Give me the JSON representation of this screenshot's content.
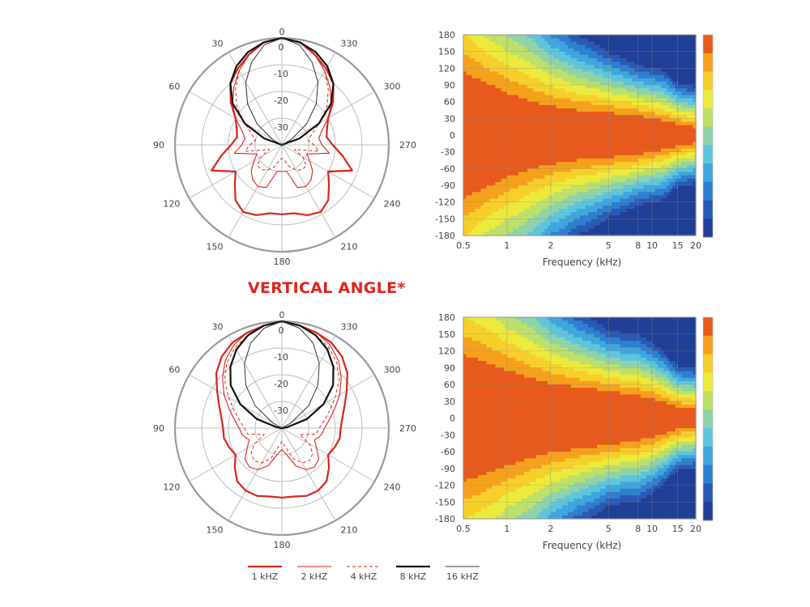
{
  "section_title": "VERTICAL ANGLE*",
  "legend": [
    {
      "label": "1 kHZ",
      "color": "#d8251c",
      "width": 2.2,
      "dash": ""
    },
    {
      "label": "2 kHZ",
      "color": "#d8251c",
      "width": 1.1,
      "dash": ""
    },
    {
      "label": "4 kHZ",
      "color": "#d8251c",
      "width": 1.0,
      "dash": "4,3"
    },
    {
      "label": "8 kHZ",
      "color": "#111111",
      "width": 2.2,
      "dash": ""
    },
    {
      "label": "16 kHZ",
      "color": "#333333",
      "width": 1.0,
      "dash": ""
    }
  ],
  "colors": {
    "grid": "#bdbdbd",
    "outer_ring": "#9a9a9a",
    "text": "#444444",
    "title": "#e0241b",
    "heatmap_bands": [
      "#e85a1c",
      "#f5a11d",
      "#f7cf2a",
      "#ecea3c",
      "#bde06a",
      "#8fd3a8",
      "#5ec5dd",
      "#3fa6de",
      "#2f7fcf",
      "#2a59b4",
      "#203f96"
    ]
  },
  "chart_data": [
    {
      "type": "polar",
      "id": "polar-top",
      "angle_labels": [
        "0",
        "30",
        "60",
        "90",
        "120",
        "150",
        "180",
        "210",
        "240",
        "270",
        "300",
        "330"
      ],
      "radial_labels": [
        "0",
        "-10",
        "-20",
        "-30"
      ],
      "rlim_db": [
        -40,
        0
      ],
      "series": [
        {
          "name": "1 kHZ",
          "db": [
            0,
            -1,
            -4,
            -7,
            -10,
            -15,
            -20,
            -22,
            -23,
            -21,
            -17,
            -12,
            -20,
            -17,
            -13,
            -11,
            -12,
            -14,
            -14,
            -14,
            -12,
            -11,
            -13,
            -17,
            -20,
            -12,
            -17,
            -21,
            -23,
            -22,
            -20,
            -15,
            -10,
            -7,
            -4,
            -1
          ]
        },
        {
          "name": "2 kHZ",
          "db": [
            0,
            -1,
            -4,
            -8,
            -12,
            -16,
            -20,
            -24,
            -26,
            -25,
            -22,
            -30,
            -28,
            -25,
            -23,
            -22,
            -23,
            -30,
            -30,
            -30,
            -23,
            -22,
            -23,
            -25,
            -28,
            -30,
            -22,
            -25,
            -26,
            -24,
            -20,
            -16,
            -12,
            -8,
            -4,
            -1
          ]
        },
        {
          "name": "4 kHZ",
          "db": [
            0,
            -1,
            -4,
            -8,
            -13,
            -18,
            -24,
            -28,
            -30,
            -28,
            -26,
            -35,
            -31,
            -28,
            -28,
            -29,
            -31,
            -34,
            -35,
            -34,
            -31,
            -29,
            -28,
            -28,
            -31,
            -35,
            -26,
            -28,
            -30,
            -28,
            -24,
            -18,
            -13,
            -8,
            -4,
            -1
          ]
        },
        {
          "name": "8 kHZ",
          "db": [
            0,
            -1,
            -3,
            -6,
            -10,
            -16,
            -24,
            -33,
            -40,
            -40,
            -40,
            -40,
            -40,
            -40,
            -40,
            -40,
            -40,
            -40,
            -40,
            -40,
            -40,
            -40,
            -40,
            -40,
            -40,
            -40,
            -40,
            -40,
            -40,
            -33,
            -24,
            -16,
            -10,
            -6,
            -3,
            -1
          ]
        },
        {
          "name": "16 kHZ",
          "db": [
            0,
            -2,
            -7,
            -13,
            -20,
            -28,
            -36,
            -40,
            -40,
            -40,
            -40,
            -40,
            -40,
            -40,
            -40,
            -40,
            -40,
            -40,
            -40,
            -40,
            -40,
            -40,
            -40,
            -40,
            -40,
            -40,
            -40,
            -40,
            -40,
            -40,
            -36,
            -28,
            -20,
            -13,
            -7,
            -2
          ]
        }
      ]
    },
    {
      "type": "heatmap",
      "id": "heatmap-top",
      "xlabel": "Frequency (kHz)",
      "x_scale": "log",
      "xlim": [
        0.5,
        20
      ],
      "x_ticks": [
        0.5,
        1,
        2,
        5,
        8,
        10,
        15,
        20
      ],
      "x_tick_labels": [
        "0.5",
        "1",
        "2",
        "5",
        "8",
        "10",
        "15",
        "20"
      ],
      "ylim": [
        -180,
        180
      ],
      "y_ticks": [
        180,
        150,
        120,
        90,
        60,
        30,
        0,
        -30,
        -60,
        -90,
        -120,
        -150,
        -180
      ],
      "y_tick_labels": [
        "180",
        "150",
        "120",
        "90",
        "60",
        "30",
        "0",
        "-30",
        "-60",
        "-90",
        "-120",
        "-150",
        "-180"
      ],
      "contour_step_db": 3,
      "beamwidth_deg": {
        "freq_khz": [
          0.5,
          0.7,
          1,
          1.5,
          2,
          3,
          5,
          8,
          10,
          12,
          15,
          20
        ],
        "minus3db_deg": [
          112,
          95,
          75,
          60,
          52,
          45,
          40,
          35,
          30,
          26,
          20,
          14
        ],
        "minus6db_deg": [
          148,
          122,
          100,
          82,
          70,
          60,
          52,
          45,
          40,
          36,
          28,
          22
        ]
      }
    },
    {
      "type": "polar",
      "id": "polar-bottom",
      "angle_labels": [
        "0",
        "30",
        "60",
        "90",
        "120",
        "150",
        "180",
        "210",
        "240",
        "270",
        "300",
        "330"
      ],
      "radial_labels": [
        "0",
        "-10",
        "-20",
        "-30"
      ],
      "rlim_db": [
        -40,
        0
      ],
      "series": [
        {
          "name": "1 kHZ",
          "db": [
            0,
            -1,
            -2,
            -3,
            -5,
            -8,
            -12,
            -15,
            -17,
            -18,
            -18,
            -19,
            -20,
            -17,
            -14,
            -13,
            -13,
            -14,
            -14,
            -14,
            -13,
            -13,
            -14,
            -17,
            -20,
            -19,
            -18,
            -18,
            -17,
            -15,
            -12,
            -8,
            -5,
            -3,
            -2,
            -1
          ]
        },
        {
          "name": "2 kHZ",
          "db": [
            0,
            -1,
            -2,
            -4,
            -7,
            -11,
            -15,
            -19,
            -22,
            -24,
            -25,
            -27,
            -25,
            -22,
            -21,
            -22,
            -25,
            -30,
            -32,
            -30,
            -25,
            -22,
            -21,
            -22,
            -25,
            -27,
            -25,
            -24,
            -22,
            -19,
            -15,
            -11,
            -7,
            -4,
            -2,
            -1
          ]
        },
        {
          "name": "4 kHZ",
          "db": [
            0,
            -1,
            -3,
            -5,
            -8,
            -12,
            -17,
            -21,
            -24,
            -26,
            -27,
            -33,
            -28,
            -25,
            -24,
            -25,
            -28,
            -33,
            -35,
            -33,
            -28,
            -25,
            -24,
            -25,
            -28,
            -33,
            -27,
            -26,
            -24,
            -21,
            -17,
            -12,
            -8,
            -5,
            -3,
            -1
          ]
        },
        {
          "name": "8 kHZ",
          "db": [
            0,
            -1,
            -3,
            -6,
            -10,
            -15,
            -22,
            -30,
            -38,
            -40,
            -40,
            -40,
            -40,
            -40,
            -40,
            -40,
            -40,
            -40,
            -40,
            -40,
            -40,
            -40,
            -40,
            -40,
            -40,
            -40,
            -40,
            -40,
            -38,
            -30,
            -22,
            -15,
            -10,
            -6,
            -3,
            -1
          ]
        },
        {
          "name": "16 kHZ",
          "db": [
            0,
            -2,
            -6,
            -12,
            -19,
            -27,
            -36,
            -40,
            -40,
            -40,
            -40,
            -40,
            -40,
            -40,
            -40,
            -40,
            -40,
            -40,
            -40,
            -40,
            -40,
            -40,
            -40,
            -40,
            -40,
            -40,
            -40,
            -40,
            -40,
            -40,
            -36,
            -27,
            -19,
            -12,
            -6,
            -2
          ]
        }
      ]
    },
    {
      "type": "heatmap",
      "id": "heatmap-bottom",
      "xlabel": "Frequency (kHz)",
      "x_scale": "log",
      "xlim": [
        0.5,
        20
      ],
      "x_ticks": [
        0.5,
        1,
        2,
        5,
        8,
        10,
        15,
        20
      ],
      "x_tick_labels": [
        "0.5",
        "1",
        "2",
        "5",
        "8",
        "10",
        "15",
        "20"
      ],
      "ylim": [
        -180,
        180
      ],
      "y_ticks": [
        180,
        150,
        120,
        90,
        60,
        30,
        0,
        -30,
        -60,
        -90,
        -120,
        -150,
        -180
      ],
      "y_tick_labels": [
        "180",
        "150",
        "120",
        "90",
        "60",
        "30",
        "0",
        "-30",
        "-60",
        "-90",
        "-120",
        "-150",
        "-180"
      ],
      "contour_step_db": 3,
      "beamwidth_deg": {
        "freq_khz": [
          0.5,
          0.7,
          1,
          1.5,
          2,
          3,
          5,
          8,
          10,
          12,
          15,
          20
        ],
        "minus3db_deg": [
          112,
          100,
          85,
          70,
          62,
          55,
          48,
          40,
          35,
          28,
          20,
          16
        ],
        "minus6db_deg": [
          148,
          130,
          110,
          92,
          80,
          70,
          60,
          52,
          46,
          38,
          28,
          24
        ]
      }
    }
  ]
}
